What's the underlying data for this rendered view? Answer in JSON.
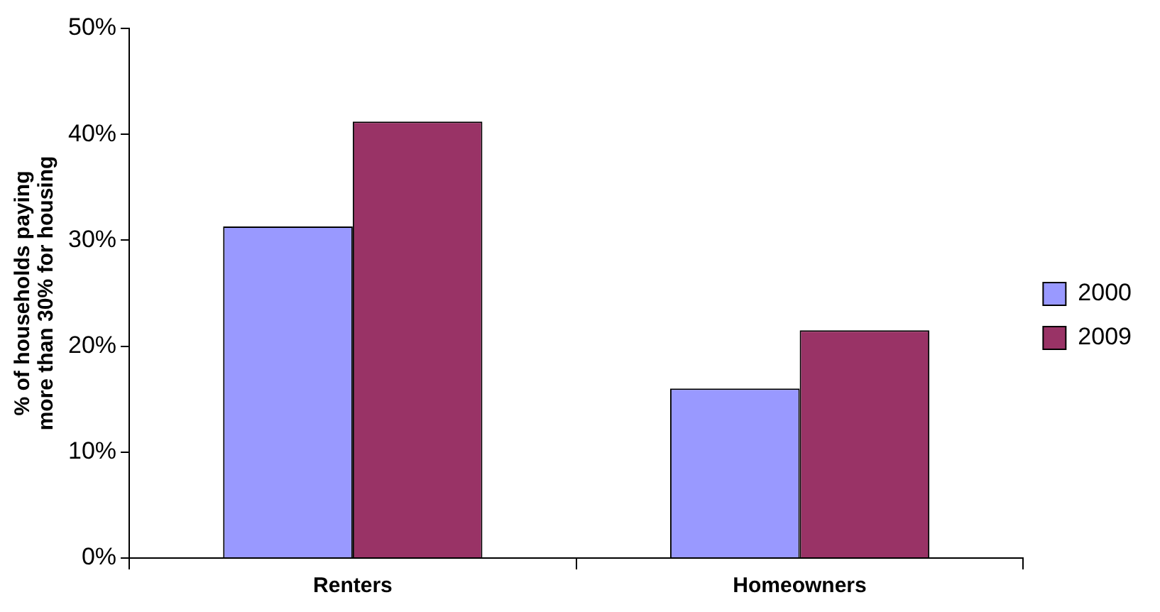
{
  "chart_data": {
    "type": "bar",
    "ylabel": "% of households paying more than 30% for housing",
    "categories": [
      "Renters",
      "Homeowners"
    ],
    "series": [
      {
        "name": "2000",
        "color": "#9999ff",
        "values": [
          31.3,
          16
        ]
      },
      {
        "name": "2009",
        "color": "#993366",
        "values": [
          41.2,
          21.5
        ]
      }
    ],
    "ylim": [
      0,
      50
    ],
    "yticks": [
      {
        "value": 0,
        "label": "0%"
      },
      {
        "value": 10,
        "label": "10%"
      },
      {
        "value": 20,
        "label": "20%"
      },
      {
        "value": 30,
        "label": "30%"
      },
      {
        "value": 40,
        "label": "40%"
      },
      {
        "value": 50,
        "label": "50%"
      }
    ],
    "grid": false,
    "legend": "right"
  }
}
